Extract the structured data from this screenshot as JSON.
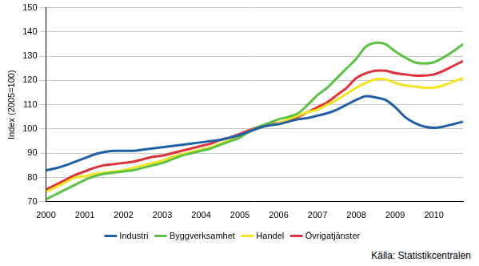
{
  "chart_data": {
    "type": "line",
    "y_label": "Index (2005=100)",
    "annotation": "Källa: Statistikcentralen",
    "x": [
      2000,
      2000.25,
      2000.5,
      2000.75,
      2001,
      2001.25,
      2001.5,
      2001.75,
      2002,
      2002.25,
      2002.5,
      2002.75,
      2003,
      2003.25,
      2003.5,
      2003.75,
      2004,
      2004.25,
      2004.5,
      2004.75,
      2005,
      2005.25,
      2005.5,
      2005.75,
      2006,
      2006.25,
      2006.5,
      2006.75,
      2007,
      2007.25,
      2007.5,
      2007.75,
      2008,
      2008.25,
      2008.5,
      2008.75,
      2009,
      2009.25,
      2009.5,
      2009.75,
      2010,
      2010.25,
      2010.5,
      2010.75
    ],
    "series": [
      {
        "name": "Industri",
        "color": "#1f5fa8",
        "values": [
          83,
          83.8,
          85,
          86.5,
          88,
          89.5,
          90.5,
          91,
          91,
          91,
          91.5,
          92,
          92.5,
          93,
          93.5,
          94,
          94.5,
          95,
          95.5,
          96.5,
          97.5,
          99,
          100.5,
          101.5,
          102,
          103,
          104,
          104.5,
          105.5,
          106.5,
          108,
          110,
          112,
          113.5,
          113,
          112,
          109,
          105,
          102.5,
          101,
          100.5,
          101,
          102,
          103
        ]
      },
      {
        "name": "Byggverksamhet",
        "color": "#5cc244",
        "values": [
          71,
          73,
          75,
          77,
          79,
          80.5,
          81.5,
          82,
          82.5,
          83,
          84,
          85,
          86,
          87.5,
          89,
          90,
          91,
          92,
          93.5,
          95,
          96.5,
          99,
          101,
          102.5,
          104,
          105,
          106.5,
          110,
          114,
          117,
          121,
          125,
          129,
          134,
          135.5,
          135,
          132,
          129.5,
          127.5,
          127,
          127.5,
          129.5,
          132,
          135
        ]
      },
      {
        "name": "Handel",
        "color": "#f5e41f",
        "values": [
          74,
          76,
          78,
          80,
          80.5,
          81.5,
          82,
          82.5,
          83,
          84,
          85,
          86,
          87,
          88.5,
          89.5,
          90.5,
          91.5,
          92.5,
          94,
          95.5,
          97,
          99,
          100.5,
          101.5,
          102.5,
          104,
          105.5,
          107,
          108,
          110,
          112,
          114.5,
          117,
          119,
          120.5,
          120.5,
          119,
          118,
          117.5,
          117,
          117,
          118,
          119.5,
          121
        ]
      },
      {
        "name": "Övrigatjänster",
        "color": "#e0303a",
        "values": [
          75,
          77,
          79,
          81,
          82.5,
          84,
          85,
          85.5,
          86,
          86.5,
          87.5,
          88.5,
          89,
          90,
          91,
          92,
          93,
          94,
          95.5,
          96.5,
          98,
          99.5,
          101,
          102,
          102.5,
          103.5,
          105,
          107,
          109,
          111,
          114,
          117,
          121,
          123,
          124,
          124,
          123,
          122.5,
          122,
          122,
          122.5,
          124,
          126,
          128
        ]
      }
    ],
    "xlim": [
      2000,
      2010.75
    ],
    "xticks": [
      2000,
      2001,
      2002,
      2003,
      2004,
      2005,
      2006,
      2007,
      2008,
      2009,
      2010
    ],
    "ylim": [
      70,
      150
    ],
    "yticks": [
      70,
      80,
      90,
      100,
      110,
      120,
      130,
      140,
      150
    ],
    "grid": true,
    "legend": "bottom"
  }
}
